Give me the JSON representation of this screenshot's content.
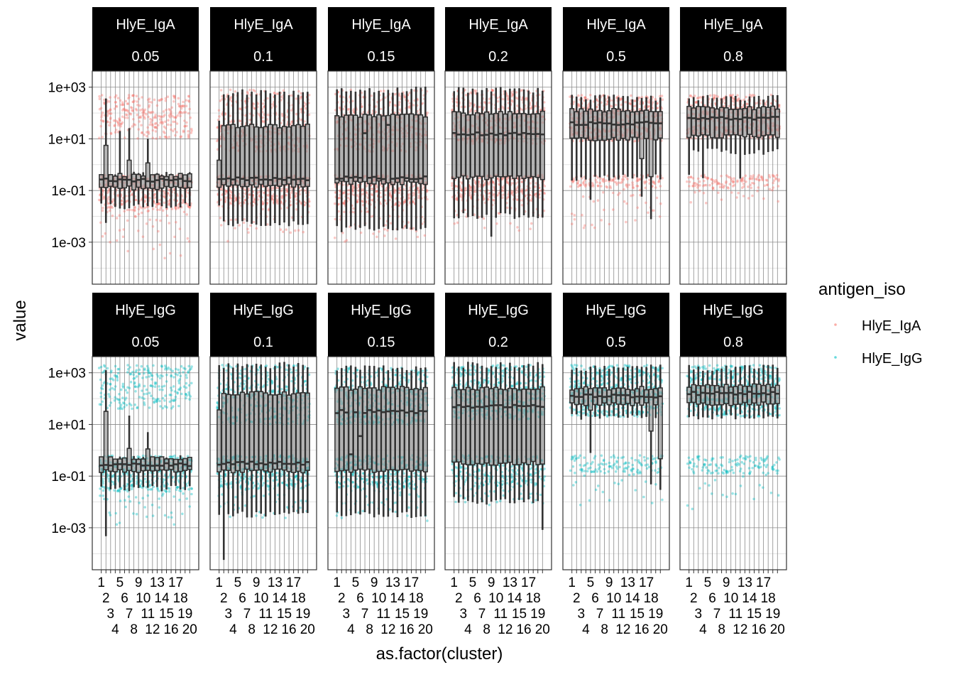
{
  "chart_data": {
    "type": "box",
    "overlay": "jittered points",
    "xlabel": "as.factor(cluster)",
    "ylabel": "value",
    "y_scale": "log10",
    "ylim_log10": [
      -4.625,
      3.625
    ],
    "y_ticks": [
      {
        "log10": 3,
        "label": "1e+03"
      },
      {
        "log10": 1,
        "label": "1e+01"
      },
      {
        "log10": -1,
        "label": "1e-01"
      },
      {
        "log10": -3,
        "label": "1e-03"
      }
    ],
    "categories": [
      "1",
      "2",
      "3",
      "4",
      "5",
      "6",
      "7",
      "8",
      "9",
      "10",
      "11",
      "12",
      "13",
      "14",
      "15",
      "16",
      "17",
      "18",
      "19",
      "20"
    ],
    "grid": true,
    "legend": {
      "title": "antigen_iso",
      "position": "right",
      "entries": [
        {
          "label": "HlyE_IgA",
          "color": "#F8766D"
        },
        {
          "label": "HlyE_IgG",
          "color": "#00BFC4"
        }
      ]
    },
    "facet_rows": [
      "HlyE_IgA",
      "HlyE_IgG"
    ],
    "facet_cols": [
      "0.05",
      "0.1",
      "0.15",
      "0.2",
      "0.5",
      "0.8"
    ],
    "panels": [
      {
        "row": 0,
        "col": 0,
        "box_log10": {
          "lower": -1.6,
          "q1": -0.9,
          "median": -0.6,
          "q3": -0.4,
          "upper": -0.4
        },
        "cluster_overrides": {
          "2": {
            "q3": 0.8,
            "upper": 2.5,
            "lower": -2.3
          },
          "5": {
            "upper": 1.3
          },
          "7": {
            "q3": 0.1,
            "upper": 1.5
          },
          "11": {
            "q3": 0.0,
            "upper": 1.0
          }
        },
        "point_bands": [
          {
            "range": [
              1.0,
              2.7
            ],
            "n": 14
          },
          {
            "range": [
              -1.8,
              -0.4
            ],
            "n": 18
          },
          {
            "range": [
              -3.7,
              -1.8
            ],
            "n": 2
          }
        ]
      },
      {
        "row": 0,
        "col": 1,
        "box_log10": {
          "lower": -2.3,
          "q1": -0.8,
          "median": -0.55,
          "q3": 1.5,
          "upper": 2.8
        },
        "cluster_overrides": {
          "1": {
            "q3": 0.2,
            "upper": 1.8,
            "lower": -1.6
          }
        },
        "point_bands": [
          {
            "range": [
              0.5,
              2.9
            ],
            "n": 18
          },
          {
            "range": [
              -1.6,
              -0.4
            ],
            "n": 18
          },
          {
            "range": [
              -3.0,
              -1.6
            ],
            "n": 2
          }
        ]
      },
      {
        "row": 0,
        "col": 2,
        "box_log10": {
          "lower": -2.5,
          "q1": -0.7,
          "median": -0.5,
          "q3": 1.9,
          "upper": 2.9
        },
        "cluster_overrides": {
          "7": {
            "median": 1.2
          },
          "12": {
            "median": 1.5
          }
        },
        "point_bands": [
          {
            "range": [
              0.5,
              2.9
            ],
            "n": 18
          },
          {
            "range": [
              -1.6,
              -0.4
            ],
            "n": 18
          },
          {
            "range": [
              -3.0,
              -1.6
            ],
            "n": 3
          }
        ]
      },
      {
        "row": 0,
        "col": 3,
        "box_log10": {
          "lower": -2.0,
          "q1": -0.5,
          "median": 1.2,
          "q3": 2.0,
          "upper": 2.9
        },
        "cluster_overrides": {
          "9": {
            "lower": -2.7
          }
        },
        "point_bands": [
          {
            "range": [
              0.8,
              2.9
            ],
            "n": 20
          },
          {
            "range": [
              -1.4,
              -0.4
            ],
            "n": 16
          },
          {
            "range": [
              -2.6,
              -1.4
            ],
            "n": 2
          }
        ]
      },
      {
        "row": 0,
        "col": 4,
        "box_log10": {
          "lower": -0.5,
          "q1": 1.0,
          "median": 1.6,
          "q3": 2.1,
          "upper": 2.6
        },
        "cluster_overrides": {
          "5": {
            "lower": -1.3
          },
          "16": {
            "q1": 0.3,
            "lower": -1.2
          },
          "18": {
            "q1": -0.5,
            "lower": -2.0
          }
        },
        "point_bands": [
          {
            "range": [
              0.9,
              2.7
            ],
            "n": 22
          },
          {
            "range": [
              -0.9,
              -0.4
            ],
            "n": 6
          },
          {
            "range": [
              -2.6,
              -0.9
            ],
            "n": 2
          }
        ]
      },
      {
        "row": 0,
        "col": 5,
        "box_log10": {
          "lower": 0.5,
          "q1": 1.1,
          "median": 1.8,
          "q3": 2.2,
          "upper": 2.6
        },
        "cluster_overrides": {
          "1": {
            "lower": -0.5
          },
          "4": {
            "lower": -0.5
          },
          "12": {
            "lower": -0.5
          }
        },
        "point_bands": [
          {
            "range": [
              1.0,
              2.7
            ],
            "n": 22
          },
          {
            "range": [
              -0.9,
              -0.4
            ],
            "n": 6
          },
          {
            "range": [
              -1.6,
              -0.9
            ],
            "n": 1
          }
        ]
      },
      {
        "row": 1,
        "col": 0,
        "box_log10": {
          "lower": -1.5,
          "q1": -0.8,
          "median": -0.55,
          "q3": -0.3,
          "upper": -0.3
        },
        "cluster_overrides": {
          "2": {
            "q3": 1.5,
            "upper": 3.0,
            "lower": -3.3
          },
          "7": {
            "q3": 0.0,
            "upper": 1.3
          },
          "11": {
            "q3": 0.0,
            "upper": 0.8
          }
        },
        "point_bands": [
          {
            "range": [
              1.6,
              3.3
            ],
            "n": 12
          },
          {
            "range": [
              -1.6,
              -0.2
            ],
            "n": 18
          },
          {
            "range": [
              -3.0,
              -1.6
            ],
            "n": 2
          }
        ]
      },
      {
        "row": 1,
        "col": 1,
        "box_log10": {
          "lower": -2.5,
          "q1": -0.8,
          "median": -0.5,
          "q3": 2.2,
          "upper": 3.3
        },
        "cluster_overrides": {
          "1": {
            "q3": 1.5
          },
          "2": {
            "lower": -4.3
          }
        },
        "point_bands": [
          {
            "range": [
              1.0,
              3.3
            ],
            "n": 18
          },
          {
            "range": [
              -1.5,
              -0.2
            ],
            "n": 18
          },
          {
            "range": [
              -2.8,
              -1.5
            ],
            "n": 2
          }
        ]
      },
      {
        "row": 1,
        "col": 2,
        "box_log10": {
          "lower": -2.5,
          "q1": -0.8,
          "median": 1.5,
          "q3": 2.4,
          "upper": 3.2
        },
        "cluster_overrides": {
          "4": {
            "median": -0.2
          },
          "6": {
            "median": 0.5
          }
        },
        "point_bands": [
          {
            "range": [
              1.0,
              3.2
            ],
            "n": 20
          },
          {
            "range": [
              -1.5,
              -0.2
            ],
            "n": 16
          },
          {
            "range": [
              -2.8,
              -1.5
            ],
            "n": 2
          }
        ]
      },
      {
        "row": 1,
        "col": 3,
        "box_log10": {
          "lower": -2.0,
          "q1": -0.5,
          "median": 1.7,
          "q3": 2.4,
          "upper": 3.3
        },
        "cluster_overrides": {
          "1": {
            "lower": -1.8
          },
          "20": {
            "lower": -3.0
          }
        },
        "point_bands": [
          {
            "range": [
              1.2,
              3.3
            ],
            "n": 22
          },
          {
            "range": [
              -1.4,
              -0.2
            ],
            "n": 14
          },
          {
            "range": [
              -2.2,
              -1.4
            ],
            "n": 2
          }
        ]
      },
      {
        "row": 1,
        "col": 4,
        "box_log10": {
          "lower": 1.3,
          "q1": 1.8,
          "median": 2.1,
          "q3": 2.4,
          "upper": 3.2
        },
        "cluster_overrides": {
          "5": {
            "q1": 1.5,
            "lower": -0.2
          },
          "18": {
            "q1": 0.7,
            "lower": -1.2
          },
          "20": {
            "q1": -0.3,
            "lower": -1.6
          }
        },
        "point_bands": [
          {
            "range": [
              1.3,
              3.3
            ],
            "n": 24
          },
          {
            "range": [
              -0.9,
              -0.2
            ],
            "n": 6
          },
          {
            "range": [
              -2.2,
              -0.9
            ],
            "n": 1
          }
        ]
      },
      {
        "row": 1,
        "col": 5,
        "box_log10": {
          "lower": 1.3,
          "q1": 1.8,
          "median": 2.2,
          "q3": 2.5,
          "upper": 3.2
        },
        "cluster_overrides": {},
        "point_bands": [
          {
            "range": [
              1.3,
              3.3
            ],
            "n": 24
          },
          {
            "range": [
              -0.9,
              -0.2
            ],
            "n": 6
          },
          {
            "range": [
              -2.4,
              -0.9
            ],
            "n": 1
          }
        ]
      }
    ]
  }
}
